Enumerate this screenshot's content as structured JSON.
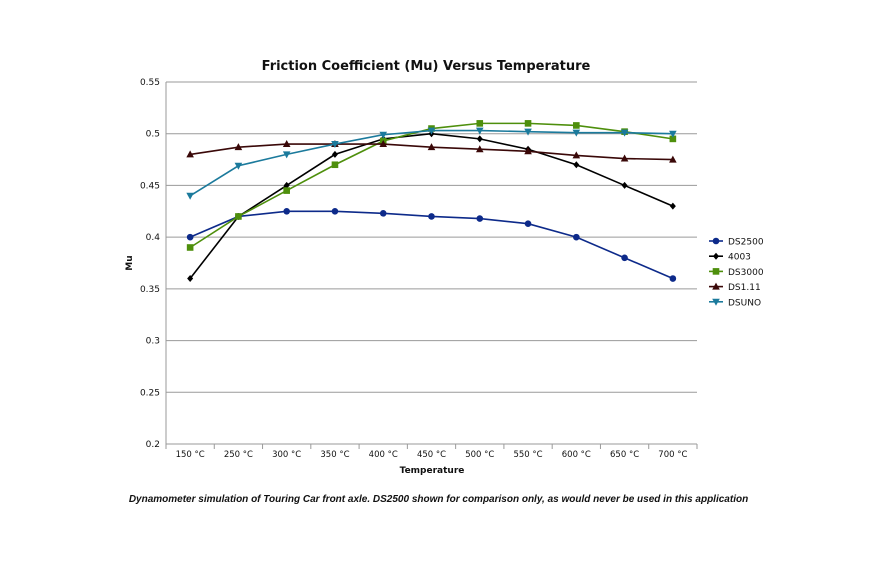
{
  "chart_data": {
    "type": "line",
    "title": "Friction Coefficient (Mu) Versus Temperature",
    "xlabel": "Temperature",
    "ylabel": "Mu",
    "categories": [
      "150 °C",
      "250 °C",
      "300 °C",
      "350 °C",
      "400 °C",
      "450 °C",
      "500 °C",
      "550 °C",
      "600 °C",
      "650 °C",
      "700 °C"
    ],
    "ylim": [
      0.2,
      0.55
    ],
    "yticks": [
      "0.2",
      "0.25",
      "0.3",
      "0.35",
      "0.4",
      "0.45",
      "0.5",
      "0.55"
    ],
    "grid": true,
    "legend": "right",
    "series": [
      {
        "name": "DS2500",
        "color": "#0d2a8a",
        "marker": "circle",
        "values": [
          0.4,
          0.42,
          0.425,
          0.425,
          0.423,
          0.42,
          0.418,
          0.413,
          0.4,
          0.38,
          0.36
        ]
      },
      {
        "name": "4003",
        "color": "#000000",
        "marker": "diamond",
        "values": [
          0.36,
          0.42,
          0.45,
          0.48,
          0.495,
          0.5,
          0.495,
          0.485,
          0.47,
          0.45,
          0.43
        ]
      },
      {
        "name": "DS3000",
        "color": "#4e8f0c",
        "marker": "square",
        "values": [
          0.39,
          0.42,
          0.445,
          0.47,
          0.493,
          0.505,
          0.51,
          0.51,
          0.508,
          0.502,
          0.495
        ]
      },
      {
        "name": "DS1.11",
        "color": "#3a0808",
        "marker": "triangle-up",
        "values": [
          0.48,
          0.487,
          0.49,
          0.49,
          0.49,
          0.487,
          0.485,
          0.483,
          0.479,
          0.476,
          0.475
        ]
      },
      {
        "name": "DSUNO",
        "color": "#1b7a9c",
        "marker": "triangle-down",
        "values": [
          0.44,
          0.469,
          0.48,
          0.49,
          0.499,
          0.503,
          0.503,
          0.502,
          0.501,
          0.501,
          0.5
        ]
      }
    ]
  },
  "caption": "Dynamometer simulation of Touring Car front axle. DS2500 shown for comparison only, as would never be used in this application"
}
